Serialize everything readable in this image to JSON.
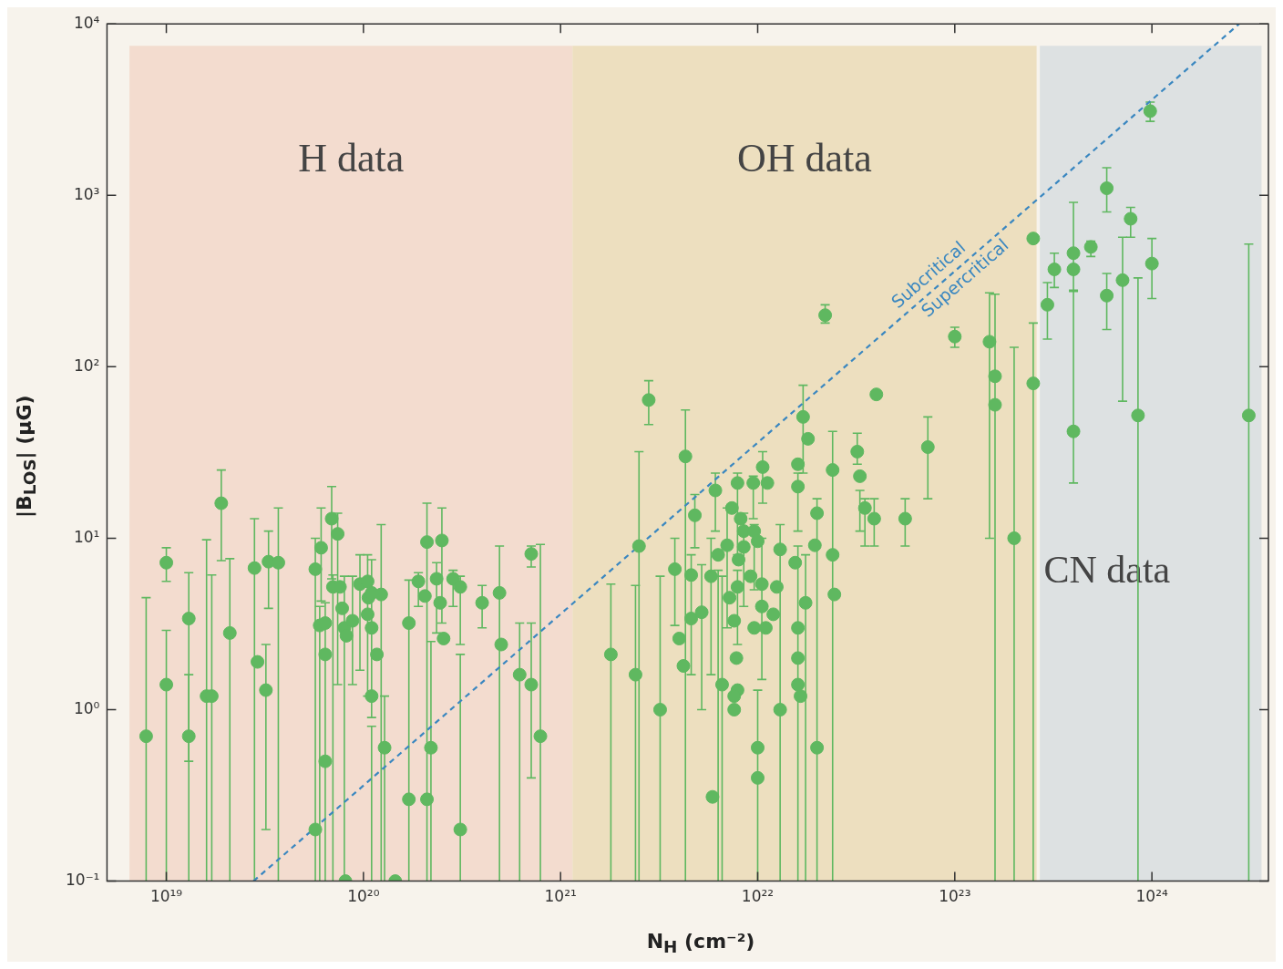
{
  "chart_data": {
    "type": "scatter",
    "xlabel": "N$_{H}$ (cm⁻²)",
    "ylabel": "|B$_{LOS}$| (μG)",
    "log": "xy",
    "legend": false,
    "marker": "circle",
    "xlim": [
      5e+18,
      3.9e+24
    ],
    "ylim": [
      0.1,
      10000
    ],
    "xticks": [
      {
        "value": 1e+19,
        "label": "10¹⁹"
      },
      {
        "value": 1e+20,
        "label": "10²⁰"
      },
      {
        "value": 1e+21,
        "label": "10²¹"
      },
      {
        "value": 1e+22,
        "label": "10²²"
      },
      {
        "value": 1e+23,
        "label": "10²³"
      },
      {
        "value": 1e+24,
        "label": "10²⁴"
      }
    ],
    "yticks": [
      {
        "value": 0.1,
        "label": "10⁻¹"
      },
      {
        "value": 1,
        "label": "10⁰"
      },
      {
        "value": 10,
        "label": "10¹"
      },
      {
        "value": 100,
        "label": "10²"
      },
      {
        "value": 1000,
        "label": "10³"
      },
      {
        "value": 10000,
        "label": "10⁴"
      }
    ],
    "bands": [
      {
        "axis": "x",
        "from": 6.5e+18,
        "to": 1.15e+21,
        "label": "H data",
        "color": "#f3dccf"
      },
      {
        "axis": "x",
        "from": 1.15e+21,
        "to": 2.6e+23,
        "label": "OH data",
        "color": "#eddfbf"
      },
      {
        "axis": "x",
        "from": 2.7e+23,
        "to": 3.6e+24,
        "label": "CN data",
        "color": "#dde1e2"
      }
    ],
    "annotations": [
      "Subcritical",
      "Supercritical"
    ],
    "series": [
      {
        "type": "scatter",
        "color": "#5fb860",
        "x": [
          7.9e+18,
          1e+19,
          1e+19,
          1.3e+19,
          1.3e+19,
          1.6e+19,
          1.7e+19,
          1.9e+19,
          2.1e+19,
          2.8e+19,
          2.9e+19,
          3.2e+19,
          3.3e+19,
          3.7e+19,
          5.7e+19,
          5.7e+19,
          6e+19,
          6.4e+19,
          6.4e+19,
          6.4e+19,
          6.1e+19,
          6.9e+19,
          7.4e+19,
          7e+19,
          7.6e+19,
          7.8e+19,
          8e+19,
          8.2e+19,
          8.8e+19,
          8.1e+19,
          1.45e+20,
          9.6e+19,
          1.05e+20,
          1.06e+20,
          1.1e+20,
          1.23e+20,
          1.05e+20,
          1.1e+20,
          1.17e+20,
          1.1e+20,
          1.28e+20,
          1.7e+20,
          1.7e+20,
          1.9e+20,
          2.05e+20,
          2.1e+20,
          2.2e+20,
          2.1e+20,
          2.35e+20,
          2.5e+20,
          2.45e+20,
          2.55e+20,
          2.85e+20,
          3.1e+20,
          3.1e+20,
          4e+20,
          4.9e+20,
          5e+20,
          6.2e+20,
          7.1e+20,
          7.1e+20,
          7.9e+20,
          1.8e+21,
          2.4e+21,
          2.5e+21,
          2.8e+21,
          3.2e+21,
          3.8e+21,
          4e+21,
          4.2e+21,
          4.3e+21,
          4.6e+21,
          4.6e+21,
          4.8e+21,
          5.2e+21,
          5.8e+21,
          5.9e+21,
          6.1e+21,
          6.3e+21,
          6.6e+21,
          7e+21,
          7.2e+21,
          7.4e+21,
          7.6e+21,
          7.8e+21,
          7.9e+21,
          7.6e+21,
          7.6e+21,
          8.2e+21,
          7.9e+21,
          7.9e+21,
          8.5e+21,
          8.5e+21,
          8e+21,
          9.2e+21,
          9.5e+21,
          9.6e+21,
          1e+22,
          1.06e+22,
          1.12e+22,
          1.05e+22,
          1.05e+22,
          9.6e+21,
          1.1e+22,
          1e+22,
          1e+22,
          1.25e+22,
          1.2e+22,
          1.3e+22,
          1.3e+22,
          1.6e+22,
          1.6e+22,
          1.7e+22,
          1.8e+22,
          1.55e+22,
          1.6e+22,
          1.6e+22,
          1.6e+22,
          1.65e+22,
          1.75e+22,
          2e+22,
          1.95e+22,
          2e+22,
          2.2e+22,
          2.4e+22,
          2.4e+22,
          2.45e+22,
          3.2e+22,
          3.3e+22,
          3.5e+22,
          3.9e+22,
          4e+22,
          5.6e+22,
          7.3e+22,
          1e+23,
          1.5e+23,
          1.6e+23,
          1.6e+23,
          2e+23,
          2.5e+23,
          2.5e+23,
          2.95e+23,
          3.2e+23,
          4e+23,
          4e+23,
          4e+23,
          4.9e+23,
          5.9e+23,
          5.9e+23,
          7.1e+23,
          7.8e+23,
          8.5e+23,
          9.8e+23,
          1e+24,
          3.1e+24
        ],
        "values": [
          0.7,
          7.2,
          1.4,
          3.4,
          0.7,
          1.2,
          1.2,
          16,
          2.8,
          6.7,
          1.9,
          1.3,
          7.3,
          7.2,
          6.6,
          0.2,
          3.1,
          3.2,
          2.1,
          0.5,
          8.8,
          13,
          10.6,
          5.2,
          5.2,
          3.9,
          3.0,
          2.7,
          3.3,
          0.1,
          0.1,
          5.4,
          5.6,
          4.5,
          4.8,
          4.7,
          3.6,
          3.0,
          2.1,
          1.2,
          0.6,
          3.2,
          0.3,
          5.6,
          4.6,
          9.5,
          0.6,
          0.3,
          5.8,
          9.7,
          4.2,
          2.6,
          5.8,
          5.2,
          0.2,
          4.2,
          4.8,
          2.4,
          1.6,
          1.4,
          8.1,
          0.7,
          2.1,
          1.6,
          9.0,
          64,
          1.0,
          6.6,
          2.6,
          1.8,
          30,
          6.1,
          3.4,
          13.6,
          3.7,
          6.0,
          0.31,
          19,
          8.0,
          1.4,
          9.1,
          4.5,
          15,
          3.3,
          2.0,
          1.3,
          1.2,
          1.0,
          13,
          21,
          5.2,
          11,
          8.9,
          7.5,
          6.0,
          21,
          11,
          9.6,
          26,
          21,
          5.4,
          4.0,
          3.0,
          3.0,
          0.6,
          0.4,
          5.2,
          3.6,
          8.6,
          1.0,
          27,
          20,
          51,
          38,
          7.2,
          3.0,
          2.0,
          1.4,
          1.2,
          4.2,
          14,
          9.1,
          0.6,
          200,
          25,
          8.0,
          4.7,
          32,
          23,
          15,
          13,
          69,
          13,
          34,
          150,
          140,
          88,
          60,
          10,
          80,
          560,
          230,
          370,
          460,
          370,
          42,
          500,
          1100,
          260,
          320,
          730,
          52,
          3100,
          400,
          52
        ],
        "errors": [
          [
            0.1,
            4.5
          ],
          [
            5.6,
            8.8
          ],
          [
            0.1,
            2.9
          ],
          [
            0.1,
            6.3
          ],
          [
            0.5,
            1.6
          ],
          [
            0.1,
            9.8
          ],
          [
            0.1,
            6.1
          ],
          [
            7.4,
            25
          ],
          [
            0.1,
            7.6
          ],
          [
            0.1,
            13
          ],
          null,
          [
            0.2,
            2.4
          ],
          [
            3.9,
            11
          ],
          [
            0.1,
            15
          ],
          [
            0.1,
            10
          ],
          null,
          [
            0.1,
            4.0
          ],
          [
            0.1,
            4.2
          ],
          null,
          null,
          [
            4.3,
            15
          ],
          [
            5.8,
            20
          ],
          [
            1.4,
            14
          ],
          [
            0.1,
            6.1
          ],
          null,
          null,
          [
            0.1,
            6
          ],
          null,
          [
            1.4,
            6
          ],
          null,
          null,
          [
            1.7,
            8
          ],
          [
            1.2,
            8
          ],
          null,
          [
            0.9,
            7.5
          ],
          [
            0.1,
            12
          ],
          null,
          null,
          null,
          [
            0.1,
            0.8
          ],
          [
            0.1,
            1.2
          ],
          [
            0.1,
            5.7
          ],
          null,
          [
            4.0,
            6.3
          ],
          null,
          [
            0.1,
            16
          ],
          [
            0.1,
            2.5
          ],
          null,
          [
            2.8,
            7.2
          ],
          [
            3.2,
            15
          ],
          null,
          null,
          [
            4.0,
            6.5
          ],
          [
            2.4,
            6.0
          ],
          [
            0.1,
            2.1
          ],
          [
            3.0,
            5.3
          ],
          [
            0.1,
            9.0
          ],
          null,
          [
            0.1,
            3.2
          ],
          [
            0.4,
            3.2
          ],
          [
            6.8,
            9.0
          ],
          [
            0.1,
            9.2
          ],
          [
            0.1,
            5.4
          ],
          [
            0.1,
            5.3
          ],
          [
            0.1,
            32
          ],
          [
            46,
            83
          ],
          [
            0.1,
            6.0
          ],
          [
            3.1,
            10
          ],
          null,
          null,
          [
            0.1,
            56
          ],
          [
            1.6,
            8
          ],
          null,
          [
            8.8,
            18
          ],
          [
            1.0,
            7.0
          ],
          [
            1.6,
            10
          ],
          null,
          [
            11,
            24
          ],
          [
            0.1,
            6.5
          ],
          [
            0.1,
            6
          ],
          [
            3,
            15
          ],
          null,
          null,
          null,
          null,
          null,
          null,
          null,
          null,
          [
            8,
            24
          ],
          [
            2.4,
            6.5
          ],
          [
            4,
            14
          ],
          null,
          null,
          null,
          [
            13,
            23
          ],
          [
            5,
            12
          ],
          null,
          [
            16,
            32
          ],
          null,
          [
            1.5,
            10
          ],
          null,
          null,
          null,
          [
            0.1,
            1.3
          ],
          null,
          null,
          null,
          null,
          [
            0.1,
            12
          ],
          [
            11,
            24
          ],
          null,
          [
            24,
            78
          ],
          null,
          null,
          [
            0.1,
            9
          ],
          null,
          null,
          null,
          [
            0.1,
            8
          ],
          [
            0.1,
            17
          ],
          null,
          null,
          [
            180,
            230
          ],
          [
            0.1,
            42
          ],
          null,
          null,
          [
            27,
            41
          ],
          [
            11,
            19
          ],
          [
            9,
            17
          ],
          [
            9,
            17
          ],
          null,
          [
            9,
            17
          ],
          [
            17,
            51
          ],
          [
            130,
            170
          ],
          [
            10,
            270
          ],
          [
            0.1,
            265
          ],
          null,
          [
            0.1,
            130
          ],
          [
            0.1,
            180
          ],
          null,
          [
            145,
            310
          ],
          [
            290,
            460
          ],
          [
            275,
            910
          ],
          null,
          [
            21,
            280
          ],
          [
            440,
            540
          ],
          [
            800,
            1450
          ],
          [
            165,
            350
          ],
          [
            63,
            570
          ],
          [
            570,
            850
          ],
          [
            0.1,
            330
          ],
          [
            2700,
            3500
          ],
          [
            250,
            560
          ],
          [
            0.1,
            520
          ]
        ]
      },
      {
        "type": "line",
        "color": "#3a87c0",
        "line_style": "dashed",
        "marker": "none",
        "x": [
          2.77e+19,
          2.77e+24
        ],
        "values": [
          0.1,
          10000
        ]
      }
    ]
  }
}
